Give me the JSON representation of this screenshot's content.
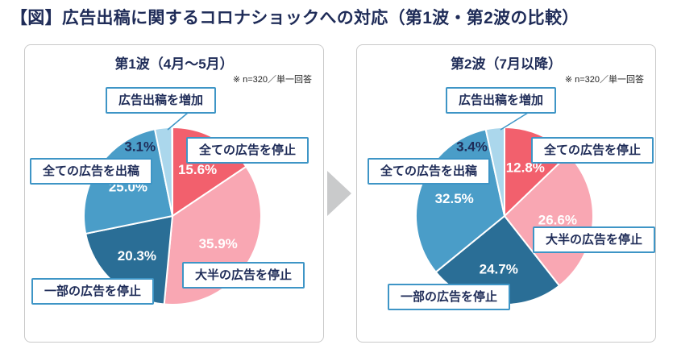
{
  "page": {
    "title": "【図】広告出稿に関するコロナショックへの対応（第1波・第2波の比較）"
  },
  "colors": {
    "title_navy": "#1f2c58",
    "label_box_border": "#3e95c6",
    "arrow_gray": "#c9cacb",
    "panel_border": "#c9c9c9"
  },
  "chart_data": [
    {
      "type": "pie",
      "title": "第1波（4月～5月）",
      "note": "※ n=320／単一回答",
      "start_angle_deg": 0,
      "direction": "clockwise",
      "legend_position": "callout-boxes",
      "segments": [
        {
          "label": "全ての広告を停止",
          "value": 15.6,
          "color": "#f2606d"
        },
        {
          "label": "大半の広告を停止",
          "value": 35.9,
          "color": "#f9a7b3"
        },
        {
          "label": "一部の広告を停止",
          "value": 20.3,
          "color": "#2a6e96"
        },
        {
          "label": "全ての広告を出稿",
          "value": 25.0,
          "color": "#4a9dc8"
        },
        {
          "label": "広告出稿を増加",
          "value": 3.1,
          "color": "#abd7ec"
        }
      ]
    },
    {
      "type": "pie",
      "title": "第2波（7月以降）",
      "note": "※ n=320／単一回答",
      "start_angle_deg": 0,
      "direction": "clockwise",
      "legend_position": "callout-boxes",
      "segments": [
        {
          "label": "全ての広告を停止",
          "value": 12.8,
          "color": "#f2606d"
        },
        {
          "label": "大半の広告を停止",
          "value": 26.6,
          "color": "#f9a7b3"
        },
        {
          "label": "一部の広告を停止",
          "value": 24.7,
          "color": "#2a6e96"
        },
        {
          "label": "全ての広告を出稿",
          "value": 32.5,
          "color": "#4a9dc8"
        },
        {
          "label": "広告出稿を増加",
          "value": 3.4,
          "color": "#abd7ec"
        }
      ]
    }
  ]
}
